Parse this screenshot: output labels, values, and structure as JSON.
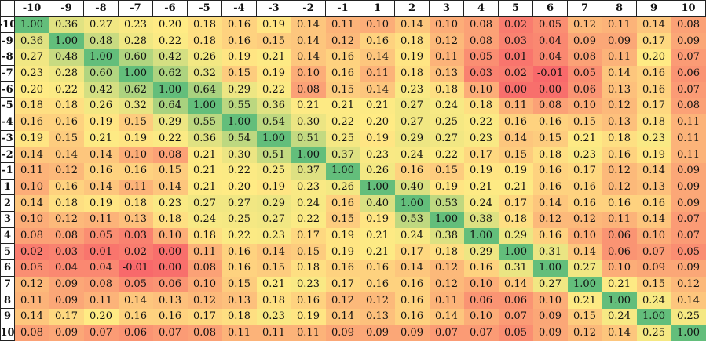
{
  "chart_data": {
    "type": "heatmap",
    "x_labels": [
      "-10",
      "-9",
      "-8",
      "-7",
      "-6",
      "-5",
      "-4",
      "-3",
      "-2",
      "-1",
      "1",
      "2",
      "3",
      "4",
      "5",
      "6",
      "7",
      "8",
      "9",
      "10"
    ],
    "y_labels": [
      "-10",
      "-9",
      "-8",
      "-7",
      "-6",
      "-5",
      "-4",
      "-3",
      "-2",
      "-1",
      "1",
      "2",
      "3",
      "4",
      "5",
      "6",
      "7",
      "8",
      "9",
      "10"
    ],
    "values": [
      [
        "1.00",
        "0.36",
        "0.27",
        "0.23",
        "0.20",
        "0.18",
        "0.16",
        "0.19",
        "0.14",
        "0.11",
        "0.10",
        "0.14",
        "0.10",
        "0.08",
        "0.02",
        "0.05",
        "0.12",
        "0.11",
        "0.14",
        "0.08"
      ],
      [
        "0.36",
        "1.00",
        "0.48",
        "0.28",
        "0.22",
        "0.18",
        "0.16",
        "0.15",
        "0.14",
        "0.12",
        "0.16",
        "0.18",
        "0.12",
        "0.08",
        "0.03",
        "0.04",
        "0.09",
        "0.09",
        "0.17",
        "0.09"
      ],
      [
        "0.27",
        "0.48",
        "1.00",
        "0.60",
        "0.42",
        "0.26",
        "0.19",
        "0.21",
        "0.14",
        "0.16",
        "0.14",
        "0.19",
        "0.11",
        "0.05",
        "0.01",
        "0.04",
        "0.08",
        "0.11",
        "0.20",
        "0.07"
      ],
      [
        "0.23",
        "0.28",
        "0.60",
        "1.00",
        "0.62",
        "0.32",
        "0.15",
        "0.19",
        "0.10",
        "0.16",
        "0.11",
        "0.18",
        "0.13",
        "0.03",
        "0.02",
        "-0.01",
        "0.05",
        "0.14",
        "0.16",
        "0.06"
      ],
      [
        "0.20",
        "0.22",
        "0.42",
        "0.62",
        "1.00",
        "0.64",
        "0.29",
        "0.22",
        "0.08",
        "0.15",
        "0.14",
        "0.23",
        "0.18",
        "0.10",
        "0.00",
        "0.00",
        "0.06",
        "0.13",
        "0.16",
        "0.07"
      ],
      [
        "0.18",
        "0.18",
        "0.26",
        "0.32",
        "0.64",
        "1.00",
        "0.55",
        "0.36",
        "0.21",
        "0.21",
        "0.21",
        "0.27",
        "0.24",
        "0.18",
        "0.11",
        "0.08",
        "0.10",
        "0.12",
        "0.17",
        "0.08"
      ],
      [
        "0.16",
        "0.16",
        "0.19",
        "0.15",
        "0.29",
        "0.55",
        "1.00",
        "0.54",
        "0.30",
        "0.22",
        "0.20",
        "0.27",
        "0.25",
        "0.22",
        "0.16",
        "0.16",
        "0.15",
        "0.13",
        "0.18",
        "0.11"
      ],
      [
        "0.19",
        "0.15",
        "0.21",
        "0.19",
        "0.22",
        "0.36",
        "0.54",
        "1.00",
        "0.51",
        "0.25",
        "0.19",
        "0.29",
        "0.27",
        "0.23",
        "0.14",
        "0.15",
        "0.21",
        "0.18",
        "0.23",
        "0.11"
      ],
      [
        "0.14",
        "0.14",
        "0.14",
        "0.10",
        "0.08",
        "0.21",
        "0.30",
        "0.51",
        "1.00",
        "0.37",
        "0.23",
        "0.24",
        "0.22",
        "0.17",
        "0.15",
        "0.18",
        "0.23",
        "0.16",
        "0.19",
        "0.11"
      ],
      [
        "0.11",
        "0.12",
        "0.16",
        "0.16",
        "0.15",
        "0.21",
        "0.22",
        "0.25",
        "0.37",
        "1.00",
        "0.26",
        "0.16",
        "0.15",
        "0.19",
        "0.19",
        "0.16",
        "0.17",
        "0.12",
        "0.14",
        "0.09"
      ],
      [
        "0.10",
        "0.16",
        "0.14",
        "0.11",
        "0.14",
        "0.21",
        "0.20",
        "0.19",
        "0.23",
        "0.26",
        "1.00",
        "0.40",
        "0.19",
        "0.21",
        "0.21",
        "0.16",
        "0.16",
        "0.12",
        "0.13",
        "0.09"
      ],
      [
        "0.14",
        "0.18",
        "0.19",
        "0.18",
        "0.23",
        "0.27",
        "0.27",
        "0.29",
        "0.24",
        "0.16",
        "0.40",
        "1.00",
        "0.53",
        "0.24",
        "0.17",
        "0.14",
        "0.16",
        "0.16",
        "0.16",
        "0.09"
      ],
      [
        "0.10",
        "0.12",
        "0.11",
        "0.13",
        "0.18",
        "0.24",
        "0.25",
        "0.27",
        "0.22",
        "0.15",
        "0.19",
        "0.53",
        "1.00",
        "0.38",
        "0.18",
        "0.12",
        "0.12",
        "0.11",
        "0.14",
        "0.07"
      ],
      [
        "0.08",
        "0.08",
        "0.05",
        "0.03",
        "0.10",
        "0.18",
        "0.22",
        "0.23",
        "0.17",
        "0.19",
        "0.21",
        "0.24",
        "0.38",
        "1.00",
        "0.29",
        "0.16",
        "0.10",
        "0.06",
        "0.10",
        "0.07"
      ],
      [
        "0.02",
        "0.03",
        "0.01",
        "0.02",
        "0.00",
        "0.11",
        "0.16",
        "0.14",
        "0.15",
        "0.19",
        "0.21",
        "0.17",
        "0.18",
        "0.29",
        "1.00",
        "0.31",
        "0.14",
        "0.06",
        "0.07",
        "0.05"
      ],
      [
        "0.05",
        "0.04",
        "0.04",
        "-0.01",
        "0.00",
        "0.08",
        "0.16",
        "0.15",
        "0.18",
        "0.16",
        "0.16",
        "0.14",
        "0.12",
        "0.16",
        "0.31",
        "1.00",
        "0.27",
        "0.10",
        "0.09",
        "0.09"
      ],
      [
        "0.12",
        "0.09",
        "0.08",
        "0.05",
        "0.06",
        "0.10",
        "0.15",
        "0.21",
        "0.23",
        "0.17",
        "0.16",
        "0.16",
        "0.12",
        "0.10",
        "0.14",
        "0.27",
        "1.00",
        "0.21",
        "0.15",
        "0.12"
      ],
      [
        "0.11",
        "0.09",
        "0.11",
        "0.14",
        "0.13",
        "0.12",
        "0.13",
        "0.18",
        "0.16",
        "0.12",
        "0.12",
        "0.16",
        "0.11",
        "0.06",
        "0.06",
        "0.10",
        "0.21",
        "1.00",
        "0.24",
        "0.14"
      ],
      [
        "0.14",
        "0.17",
        "0.20",
        "0.16",
        "0.16",
        "0.17",
        "0.18",
        "0.23",
        "0.19",
        "0.14",
        "0.13",
        "0.16",
        "0.14",
        "0.10",
        "0.07",
        "0.09",
        "0.15",
        "0.24",
        "1.00",
        "0.25"
      ],
      [
        "0.08",
        "0.09",
        "0.07",
        "0.06",
        "0.07",
        "0.08",
        "0.11",
        "0.11",
        "0.11",
        "0.09",
        "0.09",
        "0.09",
        "0.07",
        "0.07",
        "0.05",
        "0.09",
        "0.12",
        "0.14",
        "0.25",
        "1.00"
      ]
    ],
    "color_scale": {
      "low": "#f8696b",
      "mid": "#ffeb84",
      "high": "#63be7b",
      "mid_value": 0.2
    },
    "legend": "none"
  }
}
